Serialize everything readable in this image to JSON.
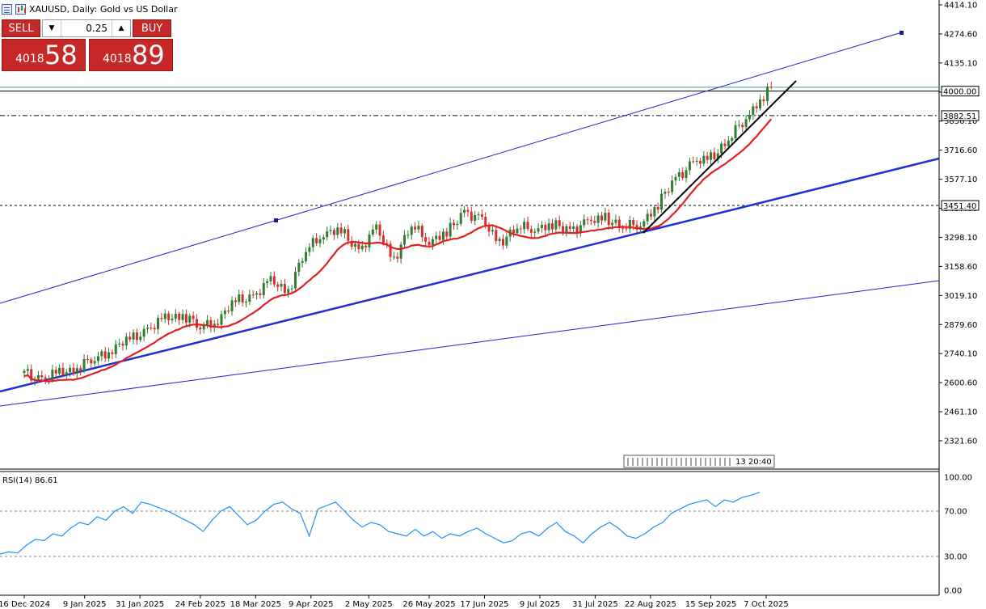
{
  "header": {
    "title": "XAUUSD, Daily:  Gold vs US Dollar",
    "list_icon": "list-icon",
    "chart_icon": "chart-icon"
  },
  "trade_panel": {
    "sell_label": "SELL",
    "buy_label": "BUY",
    "lot_value": "0.25",
    "sell_price_small": "4018",
    "sell_price_big": "58",
    "buy_price_small": "4018",
    "buy_price_big": "89",
    "color": "#c62828"
  },
  "chart_data": [
    {
      "type": "candlestick",
      "title": "XAUUSD, Daily:  Gold vs US Dollar",
      "symbol": "XAUUSD",
      "timeframe": "Daily",
      "y_axis": {
        "ticks": [
          "4414.10",
          "4274.60",
          "4135.10",
          "3995.60",
          "3856.10",
          "3716.60",
          "3577.10",
          "3437.60",
          "3298.10",
          "3158.60",
          "3019.10",
          "2879.60",
          "2740.10",
          "2600.60",
          "2461.10",
          "2321.60"
        ],
        "range": [
          2260,
          4440
        ]
      },
      "x_axis": {
        "ticks": [
          "16 Dec 2024",
          "9 Jan 2025",
          "31 Jan 2025",
          "24 Feb 2025",
          "18 Mar 2025",
          "9 Apr 2025",
          "2 May 2025",
          "26 May 2025",
          "17 Jun 2025",
          "9 Jul 2025",
          "31 Jul 2025",
          "22 Aug 2025",
          "15 Sep 2025",
          "7 Oct 2025"
        ]
      },
      "close_series": [
        [
          "2024-12-16",
          2645
        ],
        [
          "2024-12-23",
          2620
        ],
        [
          "2024-12-30",
          2640
        ],
        [
          "2025-01-06",
          2680
        ],
        [
          "2025-01-13",
          2710
        ],
        [
          "2025-01-20",
          2770
        ],
        [
          "2025-01-27",
          2800
        ],
        [
          "2025-02-03",
          2860
        ],
        [
          "2025-02-10",
          2900
        ],
        [
          "2025-02-17",
          2935
        ],
        [
          "2025-02-24",
          2860
        ],
        [
          "2025-03-03",
          2910
        ],
        [
          "2025-03-10",
          2985
        ],
        [
          "2025-03-17",
          3020
        ],
        [
          "2025-03-24",
          3080
        ],
        [
          "2025-03-31",
          3050
        ],
        [
          "2025-04-07",
          3230
        ],
        [
          "2025-04-14",
          3330
        ],
        [
          "2025-04-21",
          3320
        ],
        [
          "2025-04-28",
          3240
        ],
        [
          "2025-05-05",
          3330
        ],
        [
          "2025-05-12",
          3200
        ],
        [
          "2025-05-19",
          3350
        ],
        [
          "2025-05-26",
          3290
        ],
        [
          "2025-06-02",
          3310
        ],
        [
          "2025-06-09",
          3430
        ],
        [
          "2025-06-16",
          3370
        ],
        [
          "2025-06-23",
          3280
        ],
        [
          "2025-06-30",
          3340
        ],
        [
          "2025-07-07",
          3350
        ],
        [
          "2025-07-14",
          3350
        ],
        [
          "2025-07-21",
          3340
        ],
        [
          "2025-07-28",
          3360
        ],
        [
          "2025-08-04",
          3400
        ],
        [
          "2025-08-11",
          3340
        ],
        [
          "2025-08-18",
          3370
        ],
        [
          "2025-08-25",
          3450
        ],
        [
          "2025-09-01",
          3590
        ],
        [
          "2025-09-08",
          3645
        ],
        [
          "2025-09-15",
          3685
        ],
        [
          "2025-09-22",
          3760
        ],
        [
          "2025-09-29",
          3880
        ],
        [
          "2025-10-06",
          3975
        ],
        [
          "2025-10-09",
          4018
        ]
      ],
      "indicators": [
        {
          "name": "moving-average",
          "color": "#e02020"
        }
      ],
      "horizontal_levels": [
        {
          "value": "4000.00",
          "style": "solid",
          "color": "#000000"
        },
        {
          "value": "3882.51",
          "style": "dash-dot",
          "color": "#000000"
        },
        {
          "value": "3451.40",
          "style": "dashed",
          "color": "#000000"
        }
      ],
      "trendlines": [
        "channel upper",
        "channel lower",
        "support",
        "steep support"
      ],
      "timer_label": "13 20:40",
      "colors": {
        "up": "#2e7d32",
        "down": "#d32f2f",
        "channel": "#1f1fcf",
        "bid": "#3aa0a0"
      }
    },
    {
      "type": "line",
      "title": "RSI(14) 86.61",
      "indicator": "RSI(14)",
      "current_value": 86.61,
      "y_axis": {
        "ticks": [
          "100.00",
          "70.00",
          "30.00",
          "0.00"
        ],
        "levels": [
          70,
          30
        ],
        "range": [
          0,
          100
        ]
      },
      "values": [
        32,
        34,
        33,
        40,
        45,
        44,
        50,
        48,
        55,
        60,
        58,
        65,
        62,
        70,
        74,
        68,
        78,
        76,
        73,
        70,
        66,
        62,
        58,
        52,
        62,
        70,
        74,
        66,
        58,
        62,
        70,
        76,
        78,
        72,
        68,
        48,
        72,
        75,
        78,
        70,
        62,
        56,
        60,
        58,
        52,
        50,
        48,
        54,
        48,
        52,
        46,
        50,
        48,
        52,
        55,
        50,
        46,
        42,
        44,
        50,
        52,
        48,
        55,
        60,
        52,
        48,
        42,
        50,
        56,
        60,
        55,
        48,
        46,
        50,
        56,
        60,
        68,
        72,
        76,
        78,
        80,
        74,
        80,
        78,
        82,
        84,
        86.61
      ],
      "color": "#1e90ff"
    }
  ]
}
